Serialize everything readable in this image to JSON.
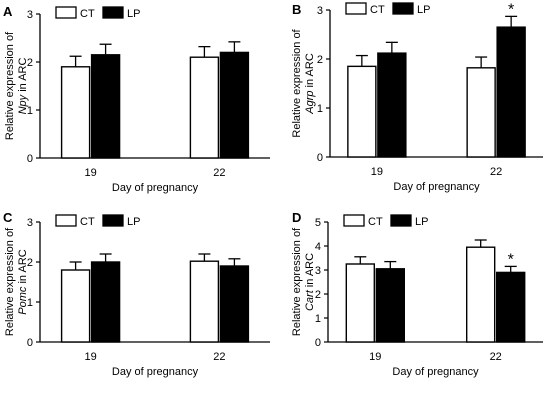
{
  "legend_colors": {
    "CT": "#ffffff",
    "LP": "#000000"
  },
  "chart_data": [
    {
      "panel": "A",
      "type": "bar",
      "categories": [
        "19",
        "22"
      ],
      "series": [
        {
          "name": "CT",
          "values": [
            1.9,
            2.1
          ],
          "errors": [
            0.22,
            0.22
          ]
        },
        {
          "name": "LP",
          "values": [
            2.15,
            2.2
          ],
          "errors": [
            0.22,
            0.22
          ]
        }
      ],
      "ylabel_prefix": "Relative expression of",
      "ylabel_gene": "Npy",
      "ylabel_suffix": " in ARC",
      "xlabel": "Day of pregnancy",
      "ylim": [
        0,
        3
      ],
      "yticks": [
        "0",
        "1",
        "2",
        "3"
      ],
      "annotations": [],
      "legend": "top-left"
    },
    {
      "panel": "B",
      "type": "bar",
      "categories": [
        "19",
        "22"
      ],
      "series": [
        {
          "name": "CT",
          "values": [
            1.85,
            1.82
          ],
          "errors": [
            0.22,
            0.22
          ]
        },
        {
          "name": "LP",
          "values": [
            2.12,
            2.65
          ],
          "errors": [
            0.22,
            0.22
          ]
        }
      ],
      "ylabel_prefix": "Relative expression of",
      "ylabel_gene": "Agrp",
      "ylabel_suffix": " in ARC",
      "xlabel": "Day of pregnancy",
      "ylim": [
        0,
        3
      ],
      "yticks": [
        "0",
        "1",
        "2",
        "3"
      ],
      "annotations": [
        {
          "text": "*",
          "category": "22",
          "series": "LP"
        }
      ],
      "legend": "top-left"
    },
    {
      "panel": "C",
      "type": "bar",
      "categories": [
        "19",
        "22"
      ],
      "series": [
        {
          "name": "CT",
          "values": [
            1.8,
            2.02
          ],
          "errors": [
            0.2,
            0.18
          ]
        },
        {
          "name": "LP",
          "values": [
            2.0,
            1.9
          ],
          "errors": [
            0.2,
            0.18
          ]
        }
      ],
      "ylabel_prefix": "Relative expression of",
      "ylabel_gene": "Pomc",
      "ylabel_suffix": " in ARC",
      "xlabel": "Day of pregnancy",
      "ylim": [
        0,
        3
      ],
      "yticks": [
        "0",
        "1",
        "2",
        "3"
      ],
      "annotations": [],
      "legend": "top-left"
    },
    {
      "panel": "D",
      "type": "bar",
      "categories": [
        "19",
        "22"
      ],
      "series": [
        {
          "name": "CT",
          "values": [
            3.25,
            3.95
          ],
          "errors": [
            0.3,
            0.3
          ]
        },
        {
          "name": "LP",
          "values": [
            3.05,
            2.9
          ],
          "errors": [
            0.3,
            0.25
          ]
        }
      ],
      "ylabel_prefix": "Relative expression of",
      "ylabel_gene": "Cart",
      "ylabel_suffix": " in ARC",
      "xlabel": "Day of pregnancy",
      "ylim": [
        0,
        5
      ],
      "yticks": [
        "0",
        "1",
        "2",
        "3",
        "4",
        "5"
      ],
      "annotations": [
        {
          "text": "*",
          "category": "22",
          "series": "LP"
        }
      ],
      "legend": "top-left"
    }
  ]
}
